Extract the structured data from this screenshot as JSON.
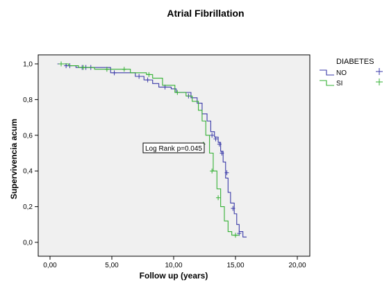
{
  "chart_data": {
    "type": "line",
    "title": "Atrial Fibrillation",
    "xlabel": "Follow up (years)",
    "ylabel": "Supervivencia acum",
    "xlim": [
      0,
      20
    ],
    "ylim": [
      0,
      1
    ],
    "x_ticks": [
      "0,00",
      "5,00",
      "10,00",
      "15,00",
      "20,00"
    ],
    "y_ticks": [
      "0,0",
      "0,2",
      "0,4",
      "0,6",
      "0,8",
      "1,0"
    ],
    "grid": false,
    "legend": {
      "title": "DIABETES",
      "position": "right"
    },
    "annotation": "Log Rank p=0.045",
    "series": [
      {
        "name": "NO",
        "color": "#3a3aa8",
        "step": [
          [
            0.6,
            1.0
          ],
          [
            1.3,
            0.99
          ],
          [
            2.1,
            0.98
          ],
          [
            3.1,
            0.98
          ],
          [
            4.9,
            0.95
          ],
          [
            5.8,
            0.95
          ],
          [
            6.9,
            0.93
          ],
          [
            7.6,
            0.91
          ],
          [
            8.3,
            0.89
          ],
          [
            8.8,
            0.87
          ],
          [
            9.8,
            0.86
          ],
          [
            10.2,
            0.84
          ],
          [
            11.4,
            0.81
          ],
          [
            11.9,
            0.78
          ],
          [
            12.3,
            0.72
          ],
          [
            12.7,
            0.68
          ],
          [
            13.0,
            0.62
          ],
          [
            13.3,
            0.59
          ],
          [
            13.6,
            0.56
          ],
          [
            13.8,
            0.51
          ],
          [
            14.0,
            0.45
          ],
          [
            14.2,
            0.36
          ],
          [
            14.4,
            0.28
          ],
          [
            14.6,
            0.22
          ],
          [
            14.9,
            0.16
          ],
          [
            15.1,
            0.1
          ],
          [
            15.3,
            0.06
          ],
          [
            15.6,
            0.03
          ],
          [
            15.9,
            0.03
          ]
        ],
        "censored": [
          [
            1.3,
            0.99
          ],
          [
            1.6,
            0.99
          ],
          [
            2.6,
            0.98
          ],
          [
            2.9,
            0.98
          ],
          [
            3.3,
            0.98
          ],
          [
            5.2,
            0.95
          ],
          [
            7.2,
            0.93
          ],
          [
            7.9,
            0.91
          ],
          [
            9.3,
            0.87
          ],
          [
            11.2,
            0.82
          ],
          [
            13.1,
            0.6
          ],
          [
            13.4,
            0.58
          ],
          [
            13.7,
            0.55
          ],
          [
            13.9,
            0.5
          ],
          [
            14.3,
            0.39
          ],
          [
            14.8,
            0.19
          ],
          [
            15.3,
            0.05
          ]
        ]
      },
      {
        "name": "SI",
        "color": "#33b033",
        "step": [
          [
            0.7,
            1.0
          ],
          [
            1.5,
            0.99
          ],
          [
            2.3,
            0.98
          ],
          [
            3.6,
            0.97
          ],
          [
            6.2,
            0.97
          ],
          [
            6.5,
            0.95
          ],
          [
            7.8,
            0.94
          ],
          [
            8.3,
            0.92
          ],
          [
            9.1,
            0.88
          ],
          [
            10.1,
            0.84
          ],
          [
            11.0,
            0.82
          ],
          [
            11.5,
            0.79
          ],
          [
            12.0,
            0.74
          ],
          [
            12.3,
            0.68
          ],
          [
            12.6,
            0.6
          ],
          [
            12.9,
            0.5
          ],
          [
            13.2,
            0.4
          ],
          [
            13.5,
            0.3
          ],
          [
            13.8,
            0.2
          ],
          [
            14.1,
            0.12
          ],
          [
            14.4,
            0.06
          ],
          [
            14.7,
            0.04
          ],
          [
            15.3,
            0.04
          ]
        ],
        "censored": [
          [
            0.9,
            1.0
          ],
          [
            2.7,
            0.98
          ],
          [
            4.6,
            0.97
          ],
          [
            6.0,
            0.97
          ],
          [
            8.0,
            0.94
          ],
          [
            10.3,
            0.84
          ],
          [
            12.4,
            0.55
          ],
          [
            13.1,
            0.4
          ],
          [
            13.6,
            0.25
          ],
          [
            15.0,
            0.04
          ]
        ]
      }
    ]
  }
}
